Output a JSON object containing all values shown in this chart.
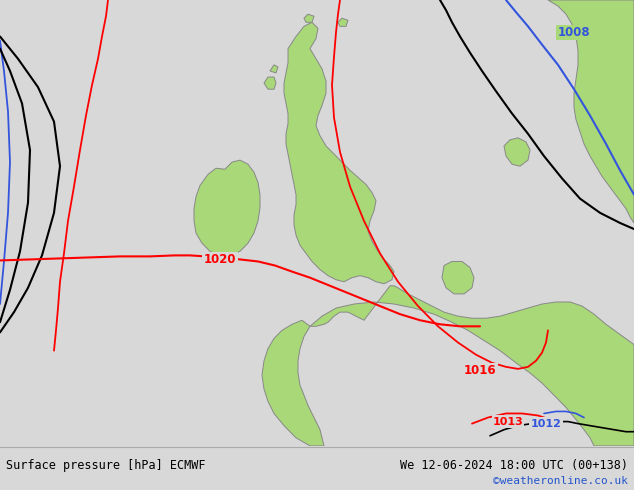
{
  "title_left": "Surface pressure [hPa] ECMWF",
  "title_right": "We 12-06-2024 18:00 UTC (00+138)",
  "credit": "©weatheronline.co.uk",
  "bg_color": "#d8d8d8",
  "land_color": "#a8d878",
  "sea_color": "#d8d8d8",
  "coast_color": "#888888",
  "figsize": [
    6.34,
    4.9
  ],
  "dpi": 100
}
